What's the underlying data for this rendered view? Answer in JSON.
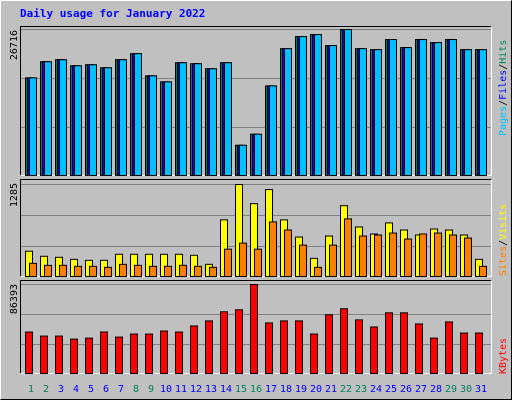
{
  "title": "Daily usage for January 2022",
  "legend_separator": "/",
  "chart_data": [
    {
      "type": "bar",
      "ylim": [
        0,
        26716
      ],
      "yticks": [
        26716
      ],
      "series": [
        {
          "name": "Hits",
          "color": "#00805c",
          "values": [
            17930,
            20860,
            21226,
            20128,
            20311,
            19762,
            21226,
            22324,
            18298,
            17200,
            20677,
            20494,
            19579,
            20677,
            5672,
            7685,
            16469,
            23239,
            25435,
            25801,
            23788,
            26716,
            23239,
            23056,
            24886,
            23422,
            24886,
            24337,
            24886,
            23056,
            23056
          ]
        },
        {
          "name": "Files",
          "color": "#0000ff",
          "values": [
            17930,
            20860,
            21226,
            20128,
            20311,
            19762,
            21226,
            22324,
            18298,
            17200,
            20677,
            20494,
            19579,
            20677,
            5672,
            7685,
            16469,
            23239,
            25435,
            25801,
            23788,
            26716,
            23239,
            23056,
            24886,
            23422,
            24886,
            24337,
            24886,
            23056,
            23056
          ]
        },
        {
          "name": "Pages",
          "color": "#00c0ff",
          "values": [
            17930,
            20860,
            21226,
            20128,
            20311,
            19762,
            21226,
            22324,
            18298,
            17200,
            20677,
            20494,
            19579,
            20677,
            5672,
            7685,
            16469,
            23239,
            25435,
            25801,
            23788,
            26716,
            23239,
            23056,
            24886,
            23422,
            24886,
            24337,
            24886,
            23056,
            23056
          ]
        }
      ]
    },
    {
      "type": "bar",
      "ylim": [
        0,
        1285
      ],
      "yticks": [
        1285
      ],
      "series": [
        {
          "name": "Visits",
          "color": "#ffff00",
          "values": [
            363,
            293,
            279,
            251,
            237,
            237,
            321,
            321,
            321,
            321,
            321,
            307,
            182,
            796,
            1285,
            1020,
            1215,
            796,
            559,
            265,
            573,
            992,
            698,
            601,
            754,
            656,
            587,
            670,
            656,
            587,
            251
          ]
        },
        {
          "name": "Sites",
          "color": "#ff8000",
          "values": [
            196,
            168,
            168,
            154,
            154,
            140,
            182,
            168,
            154,
            154,
            168,
            154,
            140,
            391,
            475,
            391,
            768,
            656,
            447,
            140,
            447,
            810,
            573,
            587,
            614,
            531,
            601,
            614,
            587,
            545,
            154
          ]
        }
      ]
    },
    {
      "type": "bar",
      "ylim": [
        0,
        86393
      ],
      "yticks": [
        86393
      ],
      "categories": [
        1,
        2,
        3,
        4,
        5,
        6,
        7,
        8,
        9,
        10,
        11,
        12,
        13,
        14,
        15,
        16,
        17,
        18,
        19,
        20,
        21,
        22,
        23,
        24,
        25,
        26,
        27,
        28,
        29,
        30,
        31
      ],
      "category_colors": [
        "#00805c",
        "#00805c",
        "#0000ff",
        "#0000ff",
        "#0000ff",
        "#0000ff",
        "#0000ff",
        "#00805c",
        "#00805c",
        "#0000ff",
        "#0000ff",
        "#0000ff",
        "#0000ff",
        "#0000ff",
        "#00805c",
        "#00805c",
        "#0000ff",
        "#0000ff",
        "#0000ff",
        "#0000ff",
        "#0000ff",
        "#00805c",
        "#00805c",
        "#0000ff",
        "#0000ff",
        "#0000ff",
        "#0000ff",
        "#0000ff",
        "#00805c",
        "#00805c",
        "#0000ff"
      ],
      "series": [
        {
          "name": "KBytes",
          "color": "#ff0000",
          "values": [
            40770,
            36887,
            36887,
            33975,
            34946,
            40770,
            35917,
            38829,
            38829,
            41740,
            40770,
            46594,
            51448,
            60185,
            62127,
            86393,
            49506,
            51448,
            51448,
            38829,
            57273,
            63097,
            52419,
            45623,
            59214,
            59214,
            48536,
            34946,
            50477,
            39799,
            39799
          ]
        }
      ]
    }
  ]
}
